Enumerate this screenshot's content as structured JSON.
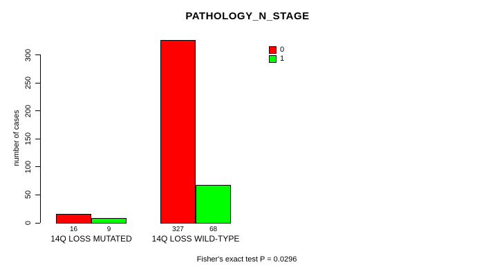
{
  "title": "PATHOLOGY_N_STAGE",
  "footer": "Fisher's exact test P = 0.0296",
  "y_axis": {
    "label": "number of cases",
    "ticks": [
      "0",
      "50",
      "100",
      "150",
      "200",
      "250",
      "300"
    ]
  },
  "legend": {
    "items": [
      {
        "label": "0",
        "color": "#ff0000"
      },
      {
        "label": "1",
        "color": "#00ff00"
      }
    ]
  },
  "chart_data": {
    "type": "bar",
    "title": "PATHOLOGY_N_STAGE",
    "categories": [
      "14Q LOSS MUTATED",
      "14Q LOSS WILD-TYPE"
    ],
    "series": [
      {
        "name": "0",
        "color": "#ff0000",
        "values": [
          16,
          327
        ]
      },
      {
        "name": "1",
        "color": "#00ff00",
        "values": [
          9,
          68
        ]
      }
    ],
    "bar_value_labels": [
      [
        "16",
        "9"
      ],
      [
        "327",
        "68"
      ]
    ],
    "xlabel": "",
    "ylabel": "number of cases",
    "ylim": [
      0,
      300
    ],
    "ytick_values": [
      0,
      50,
      100,
      150,
      200,
      250,
      300
    ],
    "grid": false,
    "legend_position": "top-right",
    "annotation": "Fisher's exact test P = 0.0296"
  }
}
